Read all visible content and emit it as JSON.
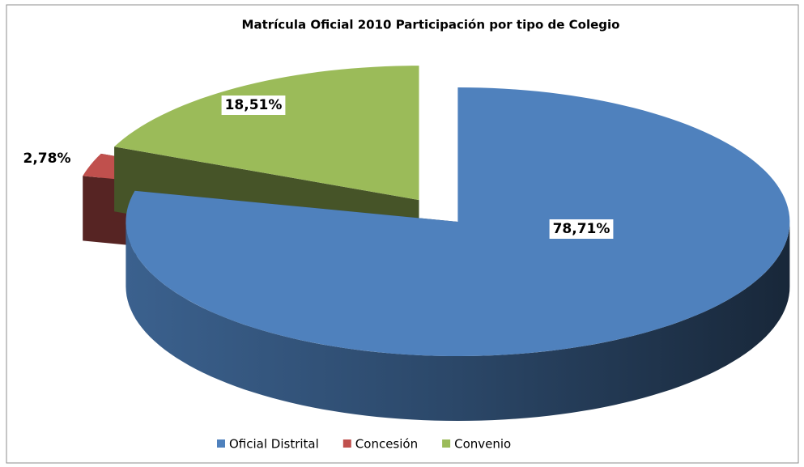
{
  "chart_data": {
    "type": "pie",
    "title": "Matrícula Oficial 2010  Participación por tipo de Colegio",
    "categories": [
      "Oficial Distrital",
      "Concesión",
      "Convenio"
    ],
    "values": [
      78.71,
      2.78,
      18.51
    ],
    "value_labels": [
      "78,71%",
      "2,78%",
      "18,51%"
    ],
    "colors": [
      "#4f81bd",
      "#c0504d",
      "#9bbb59"
    ],
    "legend": "bottom"
  }
}
